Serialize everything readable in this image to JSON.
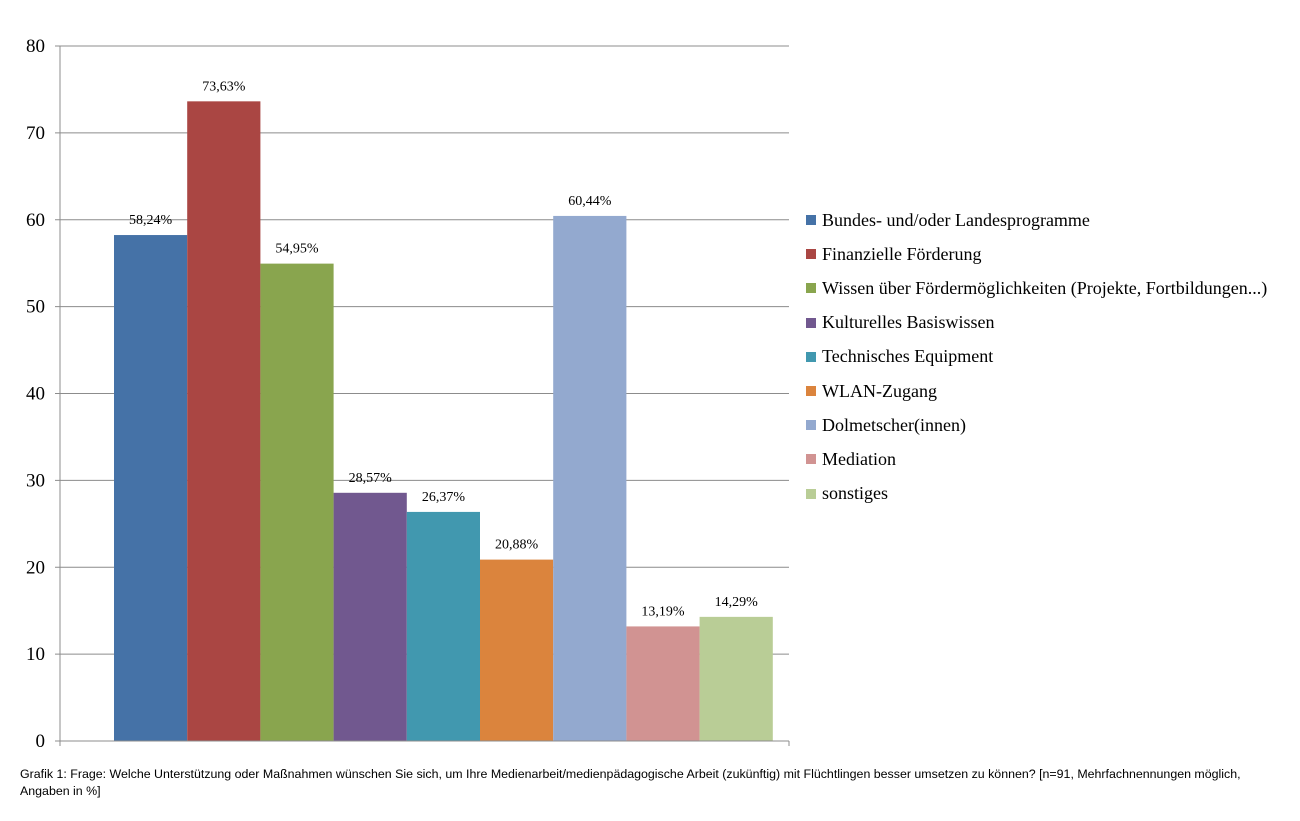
{
  "chart_data": {
    "type": "bar",
    "categories": [
      "Bundes- und/oder Landesprogramme",
      "Finanzielle Förderung",
      "Wissen über Fördermöglichkeiten (Projekte, Fortbildungen...)",
      "Kulturelles Basiswissen",
      "Technisches Equipment",
      "WLAN-Zugang",
      "Dolmetscher(innen)",
      "Mediation",
      "sonstiges"
    ],
    "values": [
      58.24,
      73.63,
      54.95,
      28.57,
      26.37,
      20.88,
      60.44,
      13.19,
      14.29
    ],
    "data_labels": [
      "58,24%",
      "73,63%",
      "54,95%",
      "28,57%",
      "26,37%",
      "20,88%",
      "60,44%",
      "13,19%",
      "14,29%"
    ],
    "colors": [
      "#4572a7",
      "#aa4643",
      "#89a54e",
      "#71588f",
      "#4198af",
      "#db843d",
      "#93a9cf",
      "#d19392",
      "#b9cd96"
    ],
    "ylim": [
      0,
      80
    ],
    "yticks": [
      0,
      10,
      20,
      30,
      40,
      50,
      60,
      70,
      80
    ],
    "grid": true,
    "legend_position": "right",
    "title": "",
    "xlabel": "",
    "ylabel": ""
  },
  "caption": "Grafik 1: Frage: Welche Unterstützung oder Maßnahmen wünschen Sie sich, um Ihre Medienarbeit/medienpädagogische Arbeit (zukünftig) mit Flüchtlingen besser umsetzen zu können? [n=91, Mehrfachnennungen möglich, Angaben in %]"
}
